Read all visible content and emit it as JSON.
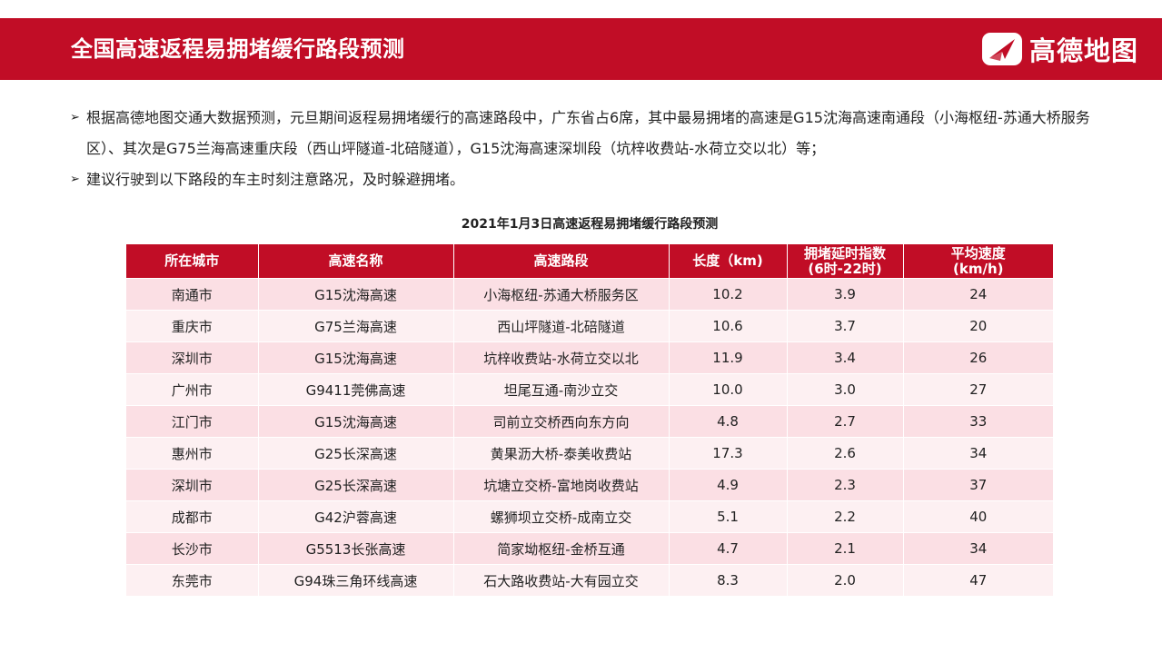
{
  "header": {
    "title": "全国高速返程易拥堵缓行路段预测",
    "brand": "高德地图",
    "logo_icon": "amap-logo-icon"
  },
  "colors": {
    "brand_red": "#c10d26",
    "row_odd": "#fbdfe4",
    "row_even": "#fdf0f2"
  },
  "bullets": [
    {
      "marker": "➢",
      "text": "根据高德地图交通大数据预测，元旦期间返程易拥堵缓行的高速路段中，广东省占6席，其中最易拥堵的高速是G15沈海高速南通段（小海枢纽-苏通大桥服务区）、其次是G75兰海高速重庆段（西山坪隧道-北碚隧道），G15沈海高速深圳段（坑梓收费站-水荷立交以北）等；"
    },
    {
      "marker": "➢",
      "text": "建议行驶到以下路段的车主时刻注意路况，及时躲避拥堵。"
    }
  ],
  "table": {
    "title": "2021年1月3日高速返程易拥堵缓行路段预测",
    "headers": [
      "所在城市",
      "高速名称",
      "高速路段",
      "长度（km)",
      "拥堵延时指数\n(6时-22时)",
      "平均速度\n(km/h)"
    ],
    "rows": [
      [
        "南通市",
        "G15沈海高速",
        "小海枢纽-苏通大桥服务区",
        "10.2",
        "3.9",
        "24"
      ],
      [
        "重庆市",
        "G75兰海高速",
        "西山坪隧道-北碚隧道",
        "10.6",
        "3.7",
        "20"
      ],
      [
        "深圳市",
        "G15沈海高速",
        "坑梓收费站-水荷立交以北",
        "11.9",
        "3.4",
        "26"
      ],
      [
        "广州市",
        "G9411莞佛高速",
        "坦尾互通-南沙立交",
        "10.0",
        "3.0",
        "27"
      ],
      [
        "江门市",
        "G15沈海高速",
        "司前立交桥西向东方向",
        "4.8",
        "2.7",
        "33"
      ],
      [
        "惠州市",
        "G25长深高速",
        "黄果沥大桥-泰美收费站",
        "17.3",
        "2.6",
        "34"
      ],
      [
        "深圳市",
        "G25长深高速",
        "坑塘立交桥-富地岗收费站",
        "4.9",
        "2.3",
        "37"
      ],
      [
        "成都市",
        "G42沪蓉高速",
        "螺狮坝立交桥-成南立交",
        "5.1",
        "2.2",
        "40"
      ],
      [
        "长沙市",
        "G5513长张高速",
        "简家坳枢纽-金桥互通",
        "4.7",
        "2.1",
        "34"
      ],
      [
        "东莞市",
        "G94珠三角环线高速",
        "石大路收费站-大有园立交",
        "8.3",
        "2.0",
        "47"
      ]
    ]
  }
}
